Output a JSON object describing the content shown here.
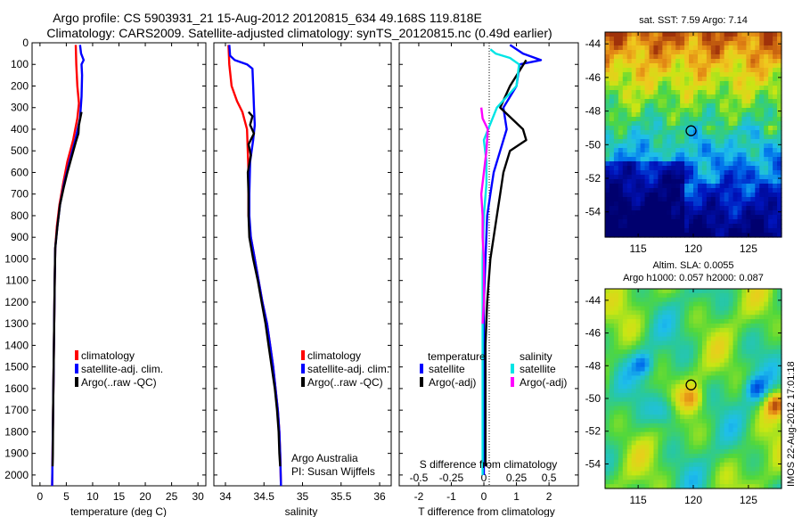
{
  "header": {
    "line1": "Argo profile: CS 5903931_21 15-Aug-2012 20120815_634 49.168S 119.818E",
    "line2": "Climatology: CARS2009. Satellite-adjusted climatology: synTS_20120815.nc (0.49d earlier)"
  },
  "colors": {
    "climatology": "#ff0000",
    "satellite_adj": "#0000ff",
    "argo": "#000000",
    "satellite_s": "#00e5e5",
    "argo_s": "#ff00ff"
  },
  "depth_ticks": [
    "0",
    "100",
    "200",
    "300",
    "400",
    "500",
    "600",
    "700",
    "800",
    "900",
    "1000",
    "1100",
    "1200",
    "1300",
    "1400",
    "1500",
    "1600",
    "1700",
    "1800",
    "1900",
    "2000"
  ],
  "chart_data": [
    {
      "type": "line",
      "xlabel": "temperature (deg C)",
      "xlim": [
        -1.5,
        31.5
      ],
      "ylim": [
        2050,
        0
      ],
      "xticks": [
        "0",
        "5",
        "10",
        "15",
        "20",
        "25",
        "30"
      ],
      "legend": [
        "climatology",
        "satellite-adj. clim.",
        "Argo(..raw -QC)"
      ],
      "series": [
        {
          "name": "climatology",
          "color": "#ff0000",
          "points": [
            [
              6.8,
              10
            ],
            [
              6.9,
              100
            ],
            [
              7.1,
              200
            ],
            [
              7.4,
              280
            ],
            [
              7.1,
              350
            ],
            [
              6.3,
              450
            ],
            [
              5.2,
              550
            ],
            [
              4.4,
              650
            ],
            [
              3.7,
              750
            ],
            [
              3.2,
              850
            ],
            [
              2.9,
              950
            ],
            [
              2.8,
              1100
            ],
            [
              2.7,
              1300
            ],
            [
              2.6,
              1500
            ],
            [
              2.5,
              1700
            ],
            [
              2.4,
              1900
            ],
            [
              2.3,
              2050
            ]
          ]
        },
        {
          "name": "satellite-adj. clim.",
          "color": "#0000ff",
          "points": [
            [
              7.6,
              10
            ],
            [
              7.8,
              50
            ],
            [
              8.3,
              80
            ],
            [
              7.9,
              100
            ],
            [
              8.0,
              150
            ],
            [
              7.9,
              250
            ],
            [
              7.6,
              350
            ],
            [
              6.7,
              450
            ],
            [
              5.6,
              550
            ],
            [
              4.6,
              650
            ],
            [
              3.8,
              750
            ],
            [
              3.3,
              850
            ],
            [
              2.9,
              950
            ],
            [
              2.8,
              1100
            ],
            [
              2.7,
              1300
            ],
            [
              2.6,
              1500
            ],
            [
              2.5,
              1700
            ],
            [
              2.4,
              1900
            ],
            [
              2.3,
              2050
            ]
          ]
        },
        {
          "name": "Argo(..raw -QC)",
          "color": "#000000",
          "points": [
            [
              7.9,
              320
            ],
            [
              7.4,
              380
            ],
            [
              7.3,
              420
            ],
            [
              6.8,
              460
            ],
            [
              6.0,
              530
            ],
            [
              5.2,
              600
            ],
            [
              4.5,
              670
            ],
            [
              3.8,
              750
            ],
            [
              3.3,
              850
            ],
            [
              2.9,
              950
            ],
            [
              2.8,
              1100
            ],
            [
              2.7,
              1300
            ],
            [
              2.6,
              1500
            ],
            [
              2.5,
              1700
            ],
            [
              2.45,
              1900
            ],
            [
              2.4,
              1960
            ]
          ]
        }
      ]
    },
    {
      "type": "line",
      "xlabel": "salinity",
      "xlim": [
        33.85,
        36.15
      ],
      "ylim": [
        2050,
        0
      ],
      "xticks": [
        "34",
        "34.5",
        "35",
        "35.5",
        "36"
      ],
      "legend": [
        "climatology",
        "satellite-adj. clim.",
        "Argo(..raw -QC)"
      ],
      "annotations": [
        "Argo Australia",
        "PI: Susan Wijffels"
      ],
      "series": [
        {
          "name": "climatology",
          "color": "#ff0000",
          "points": [
            [
              34.04,
              10
            ],
            [
              34.05,
              100
            ],
            [
              34.08,
              200
            ],
            [
              34.15,
              270
            ],
            [
              34.22,
              320
            ],
            [
              34.28,
              400
            ],
            [
              34.3,
              600
            ],
            [
              34.3,
              800
            ],
            [
              34.33,
              900
            ],
            [
              34.38,
              1000
            ],
            [
              34.43,
              1100
            ],
            [
              34.48,
              1200
            ],
            [
              34.54,
              1300
            ],
            [
              34.58,
              1400
            ],
            [
              34.62,
              1500
            ],
            [
              34.65,
              1600
            ],
            [
              34.68,
              1700
            ],
            [
              34.7,
              1800
            ],
            [
              34.71,
              1900
            ],
            [
              34.72,
              2050
            ]
          ]
        },
        {
          "name": "satellite-adj. clim.",
          "color": "#0000ff",
          "points": [
            [
              34.05,
              10
            ],
            [
              34.06,
              60
            ],
            [
              34.12,
              80
            ],
            [
              34.28,
              100
            ],
            [
              34.35,
              120
            ],
            [
              34.36,
              200
            ],
            [
              34.37,
              300
            ],
            [
              34.38,
              380
            ],
            [
              34.36,
              450
            ],
            [
              34.32,
              550
            ],
            [
              34.31,
              700
            ],
            [
              34.31,
              800
            ],
            [
              34.33,
              900
            ],
            [
              34.38,
              1000
            ],
            [
              34.43,
              1100
            ],
            [
              34.48,
              1200
            ],
            [
              34.54,
              1300
            ],
            [
              34.58,
              1400
            ],
            [
              34.62,
              1500
            ],
            [
              34.65,
              1600
            ],
            [
              34.68,
              1700
            ],
            [
              34.7,
              1800
            ],
            [
              34.71,
              1900
            ],
            [
              34.72,
              2050
            ]
          ]
        },
        {
          "name": "Argo(..raw -QC)",
          "color": "#000000",
          "points": [
            [
              34.3,
              320
            ],
            [
              34.35,
              340
            ],
            [
              34.32,
              380
            ],
            [
              34.37,
              420
            ],
            [
              34.3,
              470
            ],
            [
              34.33,
              520
            ],
            [
              34.29,
              600
            ],
            [
              34.3,
              700
            ],
            [
              34.3,
              800
            ],
            [
              34.31,
              900
            ],
            [
              34.36,
              1000
            ],
            [
              34.42,
              1100
            ],
            [
              34.47,
              1200
            ],
            [
              34.52,
              1300
            ],
            [
              34.56,
              1400
            ],
            [
              34.6,
              1500
            ],
            [
              34.64,
              1600
            ],
            [
              34.67,
              1700
            ],
            [
              34.69,
              1800
            ],
            [
              34.7,
              1900
            ],
            [
              34.71,
              1960
            ]
          ]
        }
      ]
    },
    {
      "type": "line",
      "xlabel": "T difference from climatology",
      "top_xlabel": "S difference from climatology",
      "xlim": [
        -2.6,
        2.9
      ],
      "top_xlim": [
        -0.65,
        0.725
      ],
      "ylim": [
        2050,
        0
      ],
      "xticks": [
        "-2",
        "-1",
        "0",
        "1",
        "2"
      ],
      "top_xticks": [
        "-0.5",
        "-0.25",
        "0",
        "0.25",
        "0.5"
      ],
      "legend_titles": [
        "temperature",
        "salinity"
      ],
      "legend": [
        "satellite",
        "Argo(-adj)",
        "satellite",
        "Argo(-adj)"
      ],
      "series": [
        {
          "name": "satellite",
          "group": "temperature",
          "color": "#0000ff",
          "points": [
            [
              0.8,
              10
            ],
            [
              1.2,
              50
            ],
            [
              1.75,
              80
            ],
            [
              1.1,
              100
            ],
            [
              1.0,
              200
            ],
            [
              0.6,
              300
            ],
            [
              0.7,
              400
            ],
            [
              0.5,
              500
            ],
            [
              0.3,
              600
            ],
            [
              0.2,
              700
            ],
            [
              0.1,
              800
            ],
            [
              0.05,
              1000
            ],
            [
              0.0,
              1200
            ],
            [
              0.0,
              1500
            ],
            [
              0.0,
              1800
            ],
            [
              0.0,
              2000
            ]
          ]
        },
        {
          "name": "Argo(-adj)",
          "group": "temperature",
          "color": "#000000",
          "points": [
            [
              1.3,
              80
            ],
            [
              0.8,
              200
            ],
            [
              0.5,
              300
            ],
            [
              1.2,
              400
            ],
            [
              1.3,
              450
            ],
            [
              0.8,
              500
            ],
            [
              0.6,
              600
            ],
            [
              0.5,
              700
            ],
            [
              0.4,
              800
            ],
            [
              0.2,
              1000
            ],
            [
              0.1,
              1200
            ],
            [
              0.05,
              1400
            ],
            [
              0.05,
              1600
            ],
            [
              0.05,
              1800
            ],
            [
              0.05,
              1960
            ]
          ]
        },
        {
          "name": "satellite",
          "group": "salinity",
          "color": "#00e5e5",
          "points": [
            [
              0.05,
              30
            ],
            [
              0.09,
              50
            ],
            [
              0.2,
              70
            ],
            [
              0.27,
              100
            ],
            [
              0.25,
              200
            ],
            [
              0.1,
              300
            ],
            [
              0.0,
              450
            ],
            [
              0.02,
              550
            ],
            [
              0.02,
              650
            ],
            [
              0.0,
              800
            ],
            [
              -0.01,
              1000
            ],
            [
              -0.01,
              1300
            ],
            [
              -0.01,
              1600
            ],
            [
              -0.01,
              1900
            ],
            [
              -0.01,
              2000
            ]
          ]
        },
        {
          "name": "Argo(-adj)",
          "group": "salinity",
          "color": "#ff00ff",
          "points": [
            [
              -0.02,
              300
            ],
            [
              -0.01,
              350
            ],
            [
              0.03,
              400
            ],
            [
              0.02,
              500
            ],
            [
              0.0,
              600
            ],
            [
              -0.02,
              700
            ],
            [
              -0.01,
              800
            ],
            [
              -0.01,
              900
            ],
            [
              0.0,
              1000
            ],
            [
              0.0,
              1200
            ],
            [
              -0.01,
              1300
            ]
          ]
        }
      ]
    },
    {
      "type": "heatmap",
      "title": "sat. SST: 7.59 Argo: 7.14",
      "xlim": [
        112,
        128
      ],
      "ylim": [
        -55.5,
        -43.3
      ],
      "xticks": [
        "115",
        "120",
        "125"
      ],
      "yticks": [
        "-44",
        "-46",
        "-48",
        "-50",
        "-52",
        "-54"
      ],
      "marker": [
        119.8,
        -49.17
      ]
    },
    {
      "type": "heatmap",
      "title_line1": "Altim. SLA: 0.0055",
      "title_line2": "Argo h1000: 0.057 h2000: 0.087",
      "xlim": [
        112,
        128
      ],
      "ylim": [
        -55.5,
        -43.3
      ],
      "xticks": [
        "115",
        "120",
        "125"
      ],
      "yticks": [
        "-44",
        "-46",
        "-48",
        "-50",
        "-52",
        "-54"
      ],
      "marker": [
        119.8,
        -49.17
      ],
      "side_label": "IMOS 22-Aug-2012 17:01:18"
    }
  ]
}
